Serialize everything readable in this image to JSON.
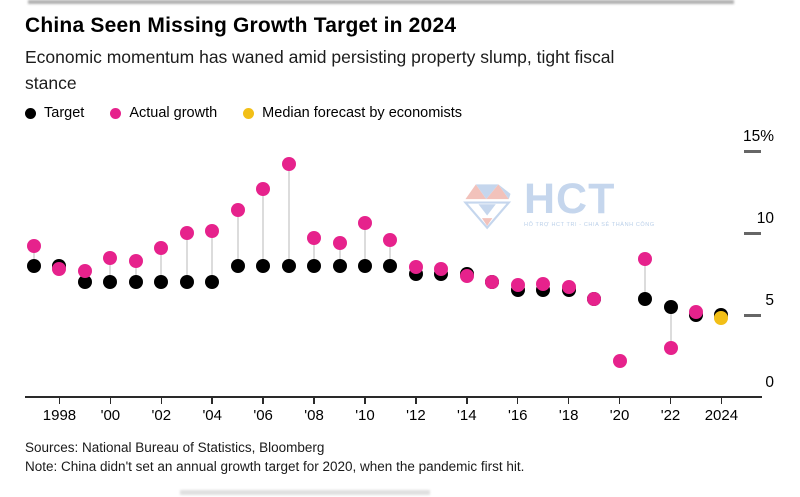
{
  "page": {
    "title": "China Seen Missing Growth Target in 2024",
    "subtitle": "Economic momentum has waned amid persisting property slump, tight fiscal stance",
    "sources": "Sources: National Bureau of Statistics, Bloomberg",
    "note": "Note: China didn't set an annual growth target for 2020, when the pandemic first hit."
  },
  "colors": {
    "target": "#000000",
    "actual": "#e6228c",
    "forecast": "#f2bf17",
    "connector": "#dcdcdc",
    "axis": "#2a2a2a",
    "watermark_blue": "#b7cde9",
    "watermark_red": "#f0b3ab"
  },
  "watermark": {
    "text": "HCT",
    "tagline": "HỖ TRỢ HCT TRI - CHIA SẺ THÀNH CÔNG"
  },
  "chart_data": {
    "type": "scatter",
    "title": "China Seen Missing Growth Target in 2024",
    "subtitle": "Economic momentum has waned amid persisting property slump, tight fiscal stance",
    "legend": [
      {
        "label": "Target",
        "color_key": "target"
      },
      {
        "label": "Actual growth",
        "color_key": "actual"
      },
      {
        "label": "Median forecast by economists",
        "color_key": "forecast"
      }
    ],
    "legend_position": "top",
    "grid": false,
    "ylabel": "",
    "xlabel": "",
    "ylim": [
      0,
      15.5
    ],
    "xlim": [
      1996.5,
      2024.8
    ],
    "y_ticks": [
      {
        "value": 15,
        "label": "15%"
      },
      {
        "value": 10,
        "label": "10"
      },
      {
        "value": 5,
        "label": "5"
      },
      {
        "value": 0,
        "label": "0"
      }
    ],
    "x_ticks": [
      {
        "year": 1998,
        "label": "1998"
      },
      {
        "year": 2000,
        "label": "'00"
      },
      {
        "year": 2002,
        "label": "'02"
      },
      {
        "year": 2004,
        "label": "'04"
      },
      {
        "year": 2006,
        "label": "'06"
      },
      {
        "year": 2008,
        "label": "'08"
      },
      {
        "year": 2010,
        "label": "'10"
      },
      {
        "year": 2012,
        "label": "'12"
      },
      {
        "year": 2014,
        "label": "'14"
      },
      {
        "year": 2016,
        "label": "'16"
      },
      {
        "year": 2018,
        "label": "'18"
      },
      {
        "year": 2020,
        "label": "'20"
      },
      {
        "year": 2022,
        "label": "'22"
      },
      {
        "year": 2024,
        "label": "2024"
      }
    ],
    "points": [
      {
        "year": 1997,
        "target": 8.0,
        "actual": 9.2
      },
      {
        "year": 1998,
        "target": 8.0,
        "actual": 7.8
      },
      {
        "year": 1999,
        "target": 7.0,
        "actual": 7.7
      },
      {
        "year": 2000,
        "target": 7.0,
        "actual": 8.5
      },
      {
        "year": 2001,
        "target": 7.0,
        "actual": 8.3
      },
      {
        "year": 2002,
        "target": 7.0,
        "actual": 9.1
      },
      {
        "year": 2003,
        "target": 7.0,
        "actual": 10.0
      },
      {
        "year": 2004,
        "target": 7.0,
        "actual": 10.1
      },
      {
        "year": 2005,
        "target": 8.0,
        "actual": 11.4
      },
      {
        "year": 2006,
        "target": 8.0,
        "actual": 12.7
      },
      {
        "year": 2007,
        "target": 8.0,
        "actual": 14.2
      },
      {
        "year": 2008,
        "target": 8.0,
        "actual": 9.7
      },
      {
        "year": 2009,
        "target": 8.0,
        "actual": 9.4
      },
      {
        "year": 2010,
        "target": 8.0,
        "actual": 10.6
      },
      {
        "year": 2011,
        "target": 8.0,
        "actual": 9.6
      },
      {
        "year": 2012,
        "target": 7.5,
        "actual": 7.9
      },
      {
        "year": 2013,
        "target": 7.5,
        "actual": 7.8
      },
      {
        "year": 2014,
        "target": 7.5,
        "actual": 7.4
      },
      {
        "year": 2015,
        "target": 7.0,
        "actual": 7.0
      },
      {
        "year": 2016,
        "target": 6.5,
        "actual": 6.8
      },
      {
        "year": 2017,
        "target": 6.5,
        "actual": 6.9
      },
      {
        "year": 2018,
        "target": 6.5,
        "actual": 6.7
      },
      {
        "year": 2019,
        "target": 6.0,
        "actual": 6.0
      },
      {
        "year": 2020,
        "target": null,
        "actual": 2.2
      },
      {
        "year": 2021,
        "target": 6.0,
        "actual": 8.4
      },
      {
        "year": 2022,
        "target": 5.5,
        "actual": 3.0
      },
      {
        "year": 2023,
        "target": 5.0,
        "actual": 5.2
      },
      {
        "year": 2024,
        "target": 5.0,
        "actual": null
      }
    ],
    "forecast": {
      "year": 2024,
      "value": 4.8
    }
  }
}
